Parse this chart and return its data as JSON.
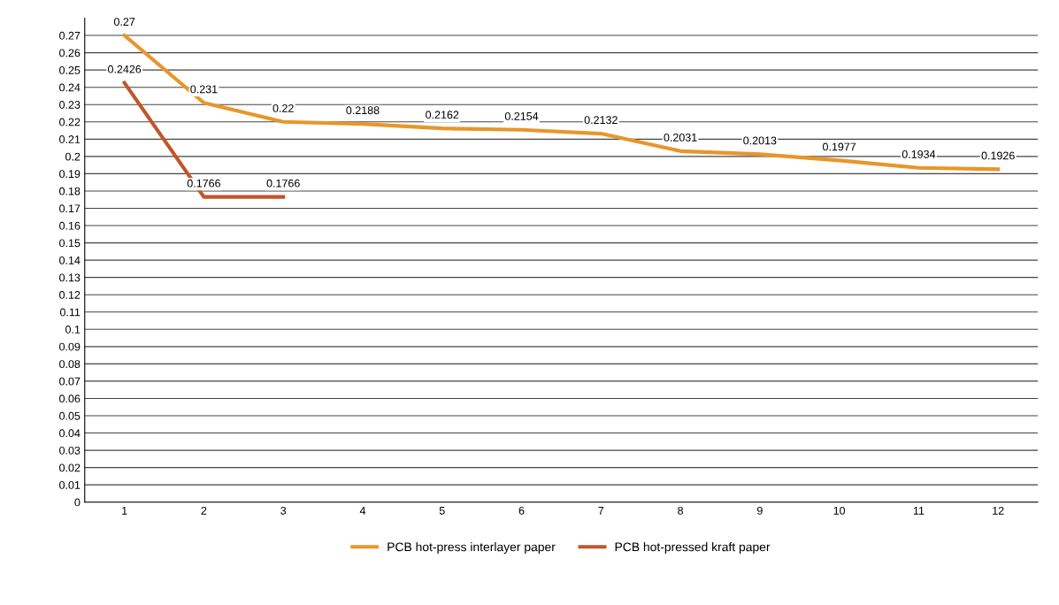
{
  "chart_data": {
    "type": "line",
    "categories": [
      "1",
      "2",
      "3",
      "4",
      "5",
      "6",
      "7",
      "8",
      "9",
      "10",
      "11",
      "12"
    ],
    "series": [
      {
        "name": "PCB hot-press interlayer paper",
        "color": "#e8962a",
        "values": [
          0.27,
          0.231,
          0.22,
          0.2188,
          0.2162,
          0.2154,
          0.2132,
          0.2031,
          0.2013,
          0.1977,
          0.1934,
          0.1926
        ]
      },
      {
        "name": "PCB hot-pressed kraft paper",
        "color": "#c0562a",
        "values": [
          0.2426,
          0.1766,
          0.1766,
          null,
          null,
          null,
          null,
          null,
          null,
          null,
          null,
          null
        ]
      }
    ],
    "ylim": [
      0,
      0.28
    ],
    "yticks": [
      0,
      0.01,
      0.02,
      0.03,
      0.04,
      0.05,
      0.06,
      0.07,
      0.08,
      0.09,
      0.1,
      0.11,
      0.12,
      0.13,
      0.14,
      0.15,
      0.16,
      0.17,
      0.18,
      0.19,
      0.2,
      0.21,
      0.22,
      0.23,
      0.24,
      0.25,
      0.26,
      0.27
    ],
    "grid": "y",
    "legend": "bottom",
    "data_labels": true,
    "marker": "none",
    "line_style": "solid"
  }
}
